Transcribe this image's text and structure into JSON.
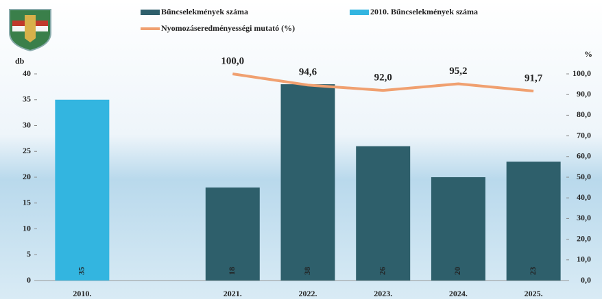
{
  "chart_data": {
    "type": "bar-line",
    "ylabel": "db",
    "y2label": "%",
    "categories": [
      "2010.",
      null,
      "2021.",
      "2022.",
      "2023.",
      "2024.",
      "2025."
    ],
    "series": [
      {
        "name": "Bűncselekmények száma",
        "type": "bar",
        "color": "#2e5f6b",
        "values": [
          null,
          null,
          18,
          38,
          26,
          20,
          23
        ]
      },
      {
        "name": "2010. Bűncselekmények száma",
        "type": "bar",
        "color": "#33b5e0",
        "values": [
          35,
          null,
          null,
          null,
          null,
          null,
          null
        ]
      },
      {
        "name": "Nyomozáseredményességi mutató (%)",
        "type": "line",
        "axis": "y2",
        "color": "#f0a070",
        "values": [
          null,
          null,
          100,
          94.6,
          92,
          95.2,
          91.7
        ],
        "value_labels": [
          null,
          null,
          "100,0",
          "94,6",
          "92,0",
          "95,2",
          "91,7"
        ]
      }
    ],
    "ylim": [
      0,
      40
    ],
    "yticks": [
      0,
      5,
      10,
      15,
      20,
      25,
      30,
      35,
      40
    ],
    "y2lim": [
      0,
      100
    ],
    "y2ticks": [
      {
        "value": 0,
        "label": "0,0"
      },
      {
        "value": 10,
        "label": "10,0"
      },
      {
        "value": 20,
        "label": "20,0"
      },
      {
        "value": 30,
        "label": "30,0"
      },
      {
        "value": 40,
        "label": "40,0"
      },
      {
        "value": 50,
        "label": "50,0"
      },
      {
        "value": 60,
        "label": "60,0"
      },
      {
        "value": 70,
        "label": "70,0"
      },
      {
        "value": 80,
        "label": "80,0"
      },
      {
        "value": 90,
        "label": "90,0"
      },
      {
        "value": 100,
        "label": "100,0"
      }
    ]
  }
}
